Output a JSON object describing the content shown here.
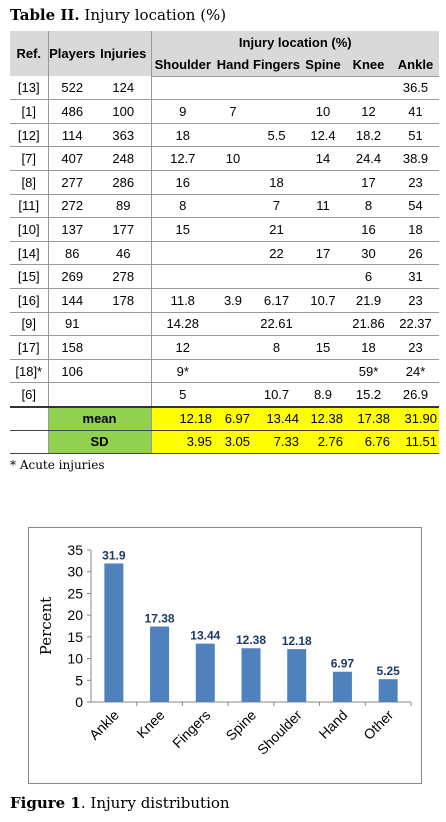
{
  "table": {
    "title_bold": "Table II.",
    "title_rest": " Injury location (%)",
    "headers": {
      "ref": "Ref.",
      "players": "Players",
      "injuries": "Injuries",
      "location_group": "Injury location (%)",
      "locations": [
        "Shoulder",
        "Hand",
        "Fingers",
        "Spine",
        "Knee",
        "Ankle"
      ]
    },
    "rows": [
      {
        "ref": "[13]",
        "players": "522",
        "injuries": "124",
        "shoulder": "",
        "hand": "",
        "fingers": "",
        "spine": "",
        "knee": "",
        "ankle": "36.5"
      },
      {
        "ref": "[1]",
        "players": "486",
        "injuries": "100",
        "shoulder": "9",
        "hand": "7",
        "fingers": "",
        "spine": "10",
        "knee": "12",
        "ankle": "41"
      },
      {
        "ref": "[12]",
        "players": "114",
        "injuries": "363",
        "shoulder": "18",
        "hand": "",
        "fingers": "5.5",
        "spine": "12.4",
        "knee": "18.2",
        "ankle": "51"
      },
      {
        "ref": "[7]",
        "players": "407",
        "injuries": "248",
        "shoulder": "12.7",
        "hand": "10",
        "fingers": "",
        "spine": "14",
        "knee": "24.4",
        "ankle": "38.9"
      },
      {
        "ref": "[8]",
        "players": "277",
        "injuries": "286",
        "shoulder": "16",
        "hand": "",
        "fingers": "18",
        "spine": "",
        "knee": "17",
        "ankle": "23"
      },
      {
        "ref": "[11]",
        "players": "272",
        "injuries": "89",
        "shoulder": "8",
        "hand": "",
        "fingers": "7",
        "spine": "11",
        "knee": "8",
        "ankle": "54"
      },
      {
        "ref": "[10]",
        "players": "137",
        "injuries": "177",
        "shoulder": "15",
        "hand": "",
        "fingers": "21",
        "spine": "",
        "knee": "16",
        "ankle": "18"
      },
      {
        "ref": "[14]",
        "players": "86",
        "injuries": "46",
        "shoulder": "",
        "hand": "",
        "fingers": "22",
        "spine": "17",
        "knee": "30",
        "ankle": "26"
      },
      {
        "ref": "[15]",
        "players": "269",
        "injuries": "278",
        "shoulder": "",
        "hand": "",
        "fingers": "",
        "spine": "",
        "knee": "6",
        "ankle": "31"
      },
      {
        "ref": "[16]",
        "players": "144",
        "injuries": "178",
        "shoulder": "11.8",
        "hand": "3.9",
        "fingers": "6.17",
        "spine": "10.7",
        "knee": "21.9",
        "ankle": "23"
      },
      {
        "ref": "[9]",
        "players": "91",
        "injuries": "",
        "shoulder": "14.28",
        "hand": "",
        "fingers": "22.61",
        "spine": "",
        "knee": "21.86",
        "ankle": "22.37"
      },
      {
        "ref": "[17]",
        "players": "158",
        "injuries": "",
        "shoulder": "12",
        "hand": "",
        "fingers": "8",
        "spine": "15",
        "knee": "18",
        "ankle": "23"
      },
      {
        "ref": "[18]*",
        "players": "106",
        "injuries": "",
        "shoulder": "9*",
        "hand": "",
        "fingers": "",
        "spine": "",
        "knee": "59*",
        "ankle": "24*"
      },
      {
        "ref": "[6]",
        "players": "",
        "injuries": "",
        "shoulder": "5",
        "hand": "",
        "fingers": "10.7",
        "spine": "8.9",
        "knee": "15.2",
        "ankle": "26.9"
      }
    ],
    "mean": {
      "label": "mean",
      "shoulder": "12.18",
      "hand": "6.97",
      "fingers": "13.44",
      "spine": "12.38",
      "knee": "17.38",
      "ankle": "31.90"
    },
    "sd": {
      "label": "SD",
      "shoulder": "3.95",
      "hand": "3.05",
      "fingers": "7.33",
      "spine": "2.76",
      "knee": "6.76",
      "ankle": "11.51"
    },
    "footnote": "* Acute injuries"
  },
  "figure": {
    "caption_bold": "Figure 1",
    "caption_rest": ". Injury distribution"
  },
  "chart_data": {
    "type": "bar",
    "categories": [
      "Ankle",
      "Knee",
      "Fingers",
      "Spine",
      "Shoulder",
      "Hand",
      "Other"
    ],
    "values": [
      31.9,
      17.38,
      13.44,
      12.38,
      12.18,
      6.97,
      5.25
    ],
    "data_labels": [
      "31.9",
      "17.38",
      "13.44",
      "12.38",
      "12.18",
      "6.97",
      "5.25"
    ],
    "title": "",
    "xlabel": "",
    "ylabel": "Percent",
    "ylim": [
      0,
      35
    ],
    "yticks": [
      0,
      5,
      10,
      15,
      20,
      25,
      30,
      35
    ],
    "grid": false,
    "legend": false,
    "bar_color": "#4f81bd",
    "label_color": "#1f3864"
  }
}
